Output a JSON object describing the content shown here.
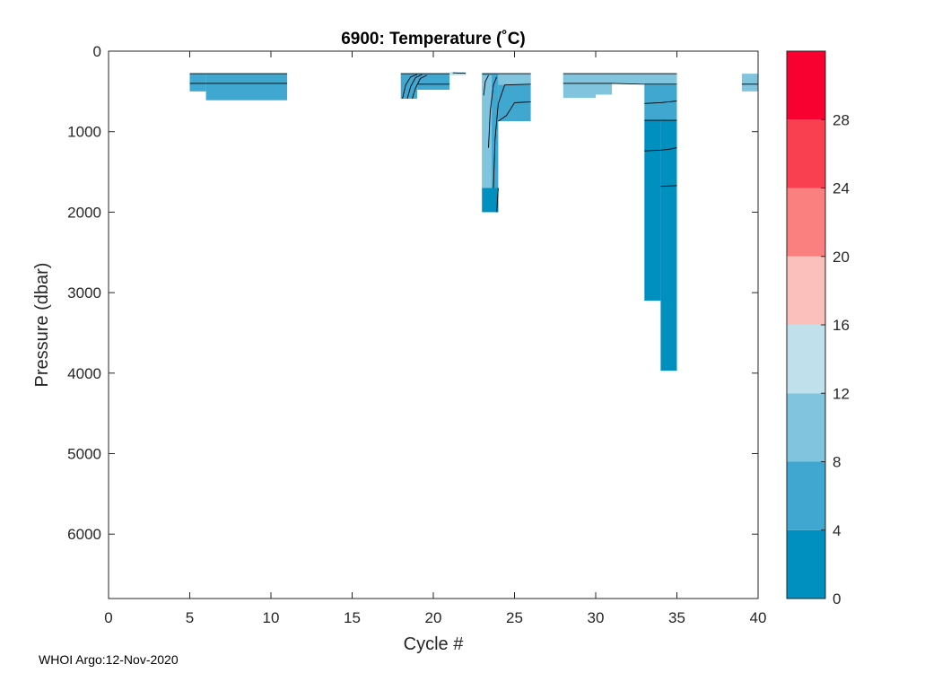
{
  "chart_data": {
    "type": "heatmap",
    "title": "6900:  Temperature (˚C)",
    "xlabel": "Cycle #",
    "ylabel": "Pressure (dbar)",
    "xlim": [
      0,
      40
    ],
    "ylim": [
      0,
      6800
    ],
    "y_reversed": true,
    "x_ticks": [
      0,
      5,
      10,
      15,
      20,
      25,
      30,
      35,
      40
    ],
    "y_ticks": [
      0,
      1000,
      2000,
      3000,
      4000,
      5000,
      6000
    ],
    "colorbar": {
      "range": [
        0,
        32
      ],
      "ticks": [
        0,
        4,
        8,
        12,
        16,
        20,
        24,
        28
      ],
      "levels": [
        {
          "from": 0,
          "to": 4,
          "color": "#0090c0"
        },
        {
          "from": 4,
          "to": 8,
          "color": "#40a8d0"
        },
        {
          "from": 8,
          "to": 12,
          "color": "#80c4de"
        },
        {
          "from": 12,
          "to": 16,
          "color": "#c0e0ec"
        },
        {
          "from": 16,
          "to": 20,
          "color": "#fcc0bc"
        },
        {
          "from": 20,
          "to": 24,
          "color": "#fa8080"
        },
        {
          "from": 24,
          "to": 28,
          "color": "#f84050"
        },
        {
          "from": 28,
          "to": 32,
          "color": "#f80030"
        }
      ]
    },
    "cells": [
      {
        "x0": 5,
        "x1": 6,
        "p0": 280,
        "p1": 500,
        "level": 1
      },
      {
        "x0": 6,
        "x1": 11,
        "p0": 280,
        "p1": 610,
        "level": 1
      },
      {
        "x0": 18,
        "x1": 19,
        "p0": 280,
        "p1": 590,
        "level": 2
      },
      {
        "x0": 19,
        "x1": 21,
        "p0": 280,
        "p1": 480,
        "level": 1
      },
      {
        "x0": 21,
        "x1": 22,
        "p0": 260,
        "p1": 300,
        "level": 3
      },
      {
        "x0": 23,
        "x1": 24,
        "p0": 280,
        "p1": 2000,
        "level": 1
      },
      {
        "x0": 24,
        "x1": 26,
        "p0": 280,
        "p1": 870,
        "level": 1
      },
      {
        "x0": 28,
        "x1": 30,
        "p0": 280,
        "p1": 580,
        "level": 2
      },
      {
        "x0": 30,
        "x1": 31,
        "p0": 280,
        "p1": 540,
        "level": 2
      },
      {
        "x0": 31,
        "x1": 33,
        "p0": 280,
        "p1": 360,
        "level": 2
      },
      {
        "x0": 33,
        "x1": 35,
        "p0": 280,
        "p1": 860,
        "level": 1
      },
      {
        "x0": 33,
        "x1": 34,
        "p0": 860,
        "p1": 3100,
        "level": 0
      },
      {
        "x0": 34,
        "x1": 35,
        "p0": 860,
        "p1": 3970,
        "level": 0
      },
      {
        "x0": 39,
        "x1": 40,
        "p0": 280,
        "p1": 500,
        "level": 2
      }
    ],
    "overlays": [
      {
        "x0": 18,
        "x1": 19,
        "p0": 280,
        "p1": 590,
        "level": 1
      },
      {
        "x0": 23,
        "x1": 23.6,
        "p0": 300,
        "p1": 1700,
        "level": 2
      },
      {
        "x0": 23,
        "x1": 24,
        "p0": 1700,
        "p1": 2000,
        "level": 0
      },
      {
        "x0": 24,
        "x1": 26,
        "p0": 280,
        "p1": 420,
        "level": 2
      },
      {
        "x0": 28,
        "x1": 33,
        "p0": 280,
        "p1": 400,
        "level": 2
      },
      {
        "x0": 33,
        "x1": 35,
        "p0": 280,
        "p1": 420,
        "level": 2
      }
    ],
    "contours": [
      [
        [
          5,
          280
        ],
        [
          11,
          280
        ]
      ],
      [
        [
          5,
          400
        ],
        [
          11,
          400
        ]
      ],
      [
        [
          18,
          280
        ],
        [
          21,
          280
        ]
      ],
      [
        [
          18.1,
          590
        ],
        [
          18.3,
          420
        ],
        [
          18.6,
          320
        ],
        [
          19,
          290
        ]
      ],
      [
        [
          18.4,
          590
        ],
        [
          18.6,
          440
        ],
        [
          18.9,
          330
        ],
        [
          19.3,
          290
        ]
      ],
      [
        [
          18.7,
          590
        ],
        [
          18.9,
          460
        ],
        [
          19.2,
          340
        ],
        [
          19.6,
          300
        ]
      ],
      [
        [
          19,
          410
        ],
        [
          21,
          410
        ]
      ],
      [
        [
          21.2,
          270
        ],
        [
          22,
          275
        ]
      ],
      [
        [
          23,
          280
        ],
        [
          26,
          280
        ]
      ],
      [
        [
          23.1,
          550
        ],
        [
          23.2,
          380
        ],
        [
          23.4,
          300
        ]
      ],
      [
        [
          23.4,
          1200
        ],
        [
          23.5,
          750
        ],
        [
          23.7,
          420
        ],
        [
          23.9,
          320
        ]
      ],
      [
        [
          23.7,
          1700
        ],
        [
          23.8,
          1100
        ],
        [
          24,
          650
        ],
        [
          24.4,
          420
        ],
        [
          26,
          410
        ]
      ],
      [
        [
          23.9,
          2000
        ],
        [
          24,
          1700
        ]
      ],
      [
        [
          24,
          870
        ],
        [
          24.5,
          800
        ],
        [
          25,
          640
        ],
        [
          26,
          630
        ]
      ],
      [
        [
          28,
          280
        ],
        [
          35,
          280
        ]
      ],
      [
        [
          28,
          400
        ],
        [
          31,
          400
        ],
        [
          33,
          410
        ],
        [
          35,
          410
        ]
      ],
      [
        [
          33,
          650
        ],
        [
          34,
          640
        ],
        [
          35,
          620
        ]
      ],
      [
        [
          33,
          860
        ],
        [
          35,
          860
        ]
      ],
      [
        [
          33,
          1240
        ],
        [
          34,
          1230
        ],
        [
          34.5,
          1220
        ],
        [
          35,
          1200
        ]
      ],
      [
        [
          34,
          1680
        ],
        [
          35,
          1670
        ]
      ],
      [
        [
          39,
          410
        ],
        [
          40,
          410
        ]
      ]
    ]
  },
  "footer": "WHOI Argo:12-Nov-2020"
}
